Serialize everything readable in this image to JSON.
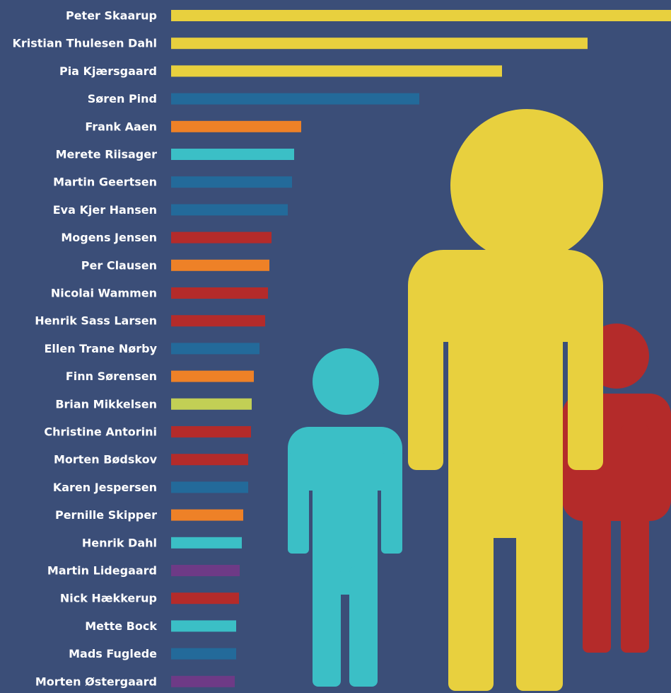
{
  "chart_data": {
    "type": "bar",
    "orientation": "horizontal",
    "categories": [
      "Peter Skaarup",
      "Kristian Thulesen Dahl",
      "Pia Kjærsgaard",
      "Søren Pind",
      "Frank Aaen",
      "Merete Riisager",
      "Martin Geertsen",
      "Eva Kjer Hansen",
      "Mogens Jensen",
      "Per Clausen",
      "Nicolai Wammen",
      "Henrik Sass Larsen",
      "Ellen Trane Nørby",
      "Finn Sørensen",
      "Brian Mikkelsen",
      "Christine Antorini",
      "Morten Bødskov",
      "Karen Jespersen",
      "Pernille Skipper",
      "Henrik Dahl",
      "Martin Lidegaard",
      "Nick Hækkerup",
      "Mette Bock",
      "Mads Fuglede",
      "Morten Østergaard"
    ],
    "values": [
      707,
      589,
      468,
      351,
      184,
      174,
      171,
      165,
      142,
      139,
      137,
      133,
      125,
      117,
      114,
      113,
      109,
      109,
      102,
      100,
      97,
      96,
      92,
      92,
      90
    ],
    "colors": [
      "#e8d03e",
      "#e8d03e",
      "#e8d03e",
      "#236a9a",
      "#ee8127",
      "#3bbfc6",
      "#236a9a",
      "#236a9a",
      "#b42b2a",
      "#ee8127",
      "#b42b2a",
      "#b42b2a",
      "#236a9a",
      "#ee8127",
      "#c2cf55",
      "#b42b2a",
      "#b42b2a",
      "#236a9a",
      "#ee8127",
      "#3bbfc6",
      "#6e3a86",
      "#b42b2a",
      "#3bbfc6",
      "#236a9a",
      "#6e3a86"
    ],
    "xlim": [
      0,
      707
    ]
  }
}
